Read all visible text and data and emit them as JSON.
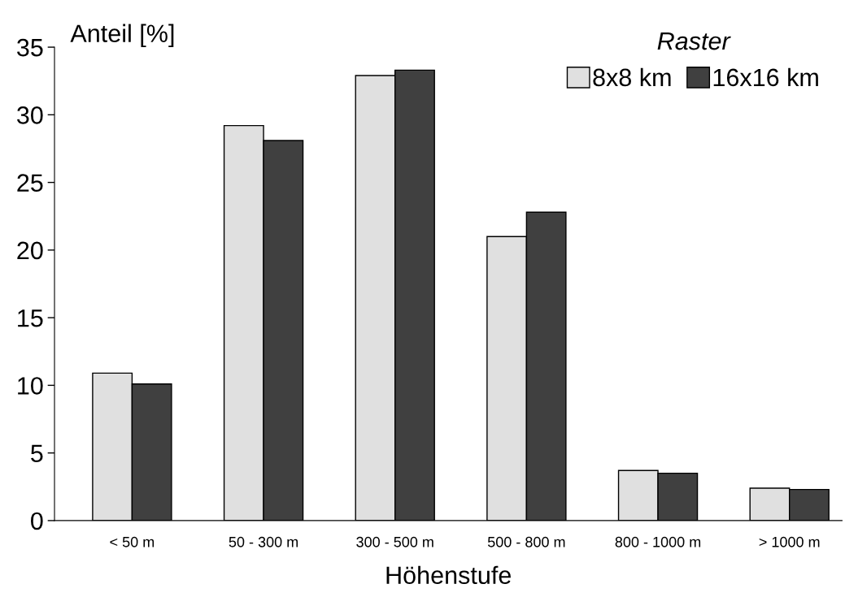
{
  "chart_data": {
    "type": "bar",
    "xlabel": "Höhenstufe",
    "ylabel": "Anteil [%]",
    "legend_title": "Raster",
    "legend": "top right",
    "grid": false,
    "categories": [
      "< 50 m",
      "50 - 300 m",
      "300 - 500 m",
      "500 - 800 m",
      "800 - 1000 m",
      "> 1000 m"
    ],
    "series": [
      {
        "name": "8x8 km",
        "color": "#e0e0e0",
        "values": [
          10.9,
          29.2,
          32.9,
          21.0,
          3.7,
          2.4
        ]
      },
      {
        "name": "16x16 km",
        "color": "#404040",
        "values": [
          10.1,
          28.1,
          33.3,
          22.8,
          3.5,
          2.3
        ]
      }
    ],
    "ylim": [
      0,
      35
    ],
    "yticks": [
      0,
      5,
      10,
      15,
      20,
      25,
      30,
      35
    ]
  }
}
